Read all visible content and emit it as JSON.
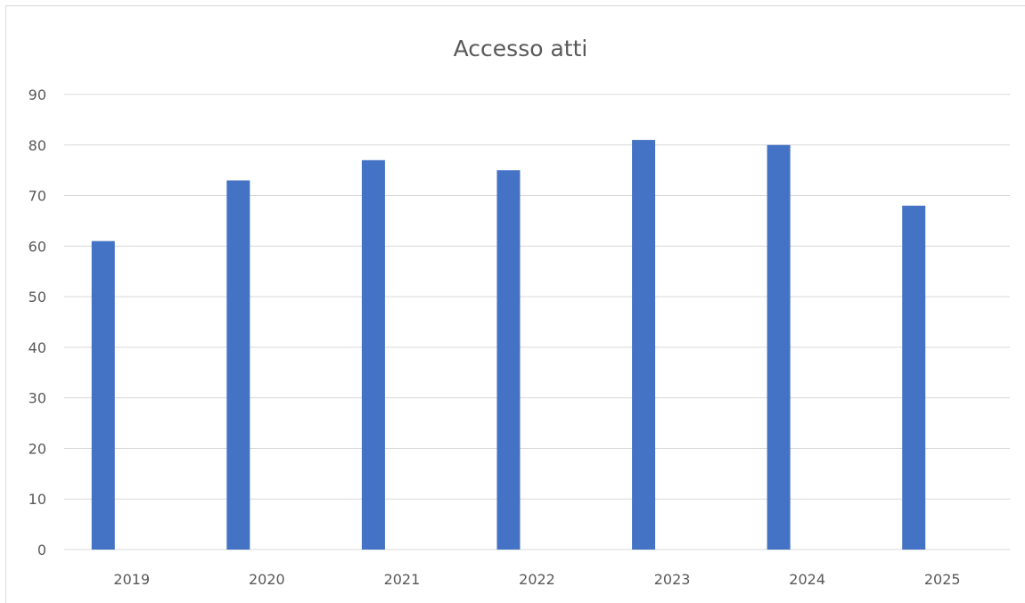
{
  "chart_data": {
    "type": "bar",
    "title": "Accesso atti",
    "categories": [
      "2019",
      "2020",
      "2021",
      "2022",
      "2023",
      "2024",
      "2025"
    ],
    "values": [
      61,
      73,
      77,
      75,
      81,
      80,
      68
    ],
    "xlabel": "",
    "ylabel": "",
    "ylim": [
      0,
      90
    ],
    "yticks": [
      "0",
      "10",
      "20",
      "30",
      "40",
      "50",
      "60",
      "70",
      "80",
      "90"
    ],
    "grid": true,
    "legend": "none",
    "colors": {
      "bar": "#4472c4",
      "grid": "#d9d9d9",
      "text": "#595959"
    }
  }
}
